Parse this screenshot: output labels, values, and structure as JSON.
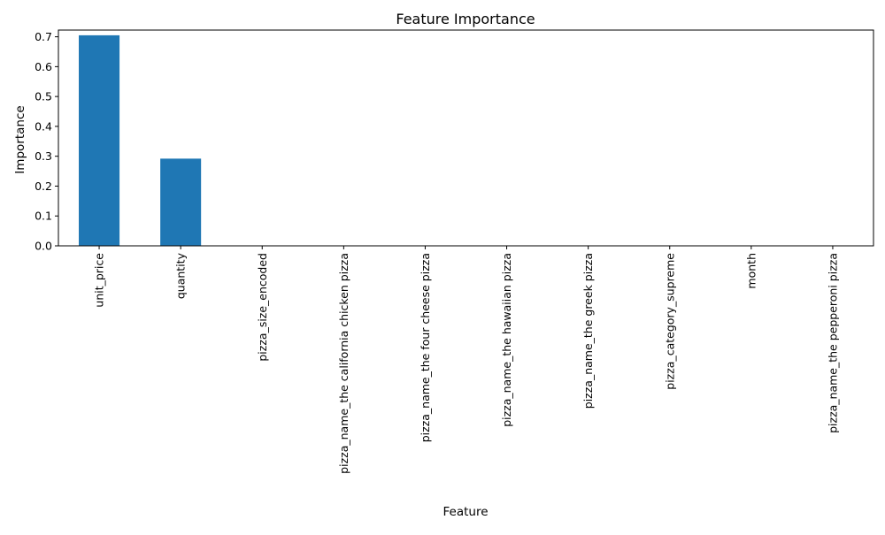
{
  "chart_data": {
    "type": "bar",
    "title": "Feature Importance",
    "xlabel": "Feature",
    "ylabel": "Importance",
    "categories": [
      "unit_price",
      "quantity",
      "pizza_size_encoded",
      "pizza_name_the california chicken pizza",
      "pizza_name_the four cheese pizza",
      "pizza_name_the hawaiian pizza",
      "pizza_name_the greek pizza",
      "pizza_category_supreme",
      "month",
      "pizza_name_the pepperoni pizza"
    ],
    "values": [
      0.705,
      0.292,
      0,
      0,
      0,
      0,
      0,
      0,
      0,
      0
    ],
    "ylim": [
      0,
      0.7225
    ],
    "yticks": [
      0.0,
      0.1,
      0.2,
      0.3,
      0.4,
      0.5,
      0.6,
      0.7
    ],
    "ytick_labels": [
      "0.0",
      "0.1",
      "0.2",
      "0.3",
      "0.4",
      "0.5",
      "0.6",
      "0.7"
    ],
    "bar_color": "#1f77b4",
    "grid": false,
    "legend": "none"
  }
}
